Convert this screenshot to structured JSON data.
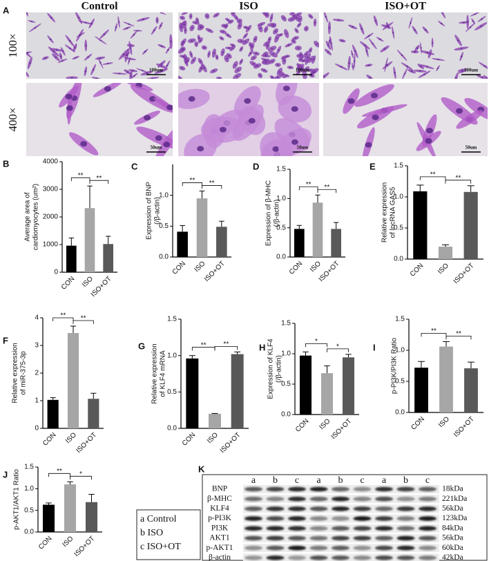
{
  "micrographs": {
    "panel": "A",
    "columns": [
      "Control",
      "ISO",
      "ISO+OT"
    ],
    "rows": [
      {
        "label": "100×",
        "scale_bar": "100um"
      },
      {
        "label": "400×",
        "scale_bar": "50um"
      }
    ]
  },
  "chart_data": [
    {
      "type": "bar",
      "panel": "B",
      "ylabel": [
        "Average area of",
        "cardiomyocytes (um²)"
      ],
      "categories": [
        "CON",
        "ISO",
        "ISO+OT"
      ],
      "values": [
        960,
        2320,
        1020
      ],
      "errors": [
        280,
        800,
        280
      ],
      "colors": [
        "#000000",
        "#a6a6a6",
        "#595959"
      ],
      "ylim": [
        0,
        4000
      ],
      "yticks": [
        0,
        1000,
        2000,
        3000,
        4000
      ],
      "significance": [
        "**",
        "**"
      ]
    },
    {
      "type": "bar",
      "panel": "C",
      "ylabel": [
        "Expression of BNP",
        "(/β-actin)"
      ],
      "categories": [
        "CON",
        "ISO",
        "ISO+OT"
      ],
      "values": [
        0.41,
        0.95,
        0.49
      ],
      "errors": [
        0.1,
        0.12,
        0.09
      ],
      "colors": [
        "#000000",
        "#a6a6a6",
        "#595959"
      ],
      "ylim": [
        0,
        1.5
      ],
      "yticks": [
        {
          "value": 0,
          "label": "0.0"
        },
        0.5,
        {
          "value": 1,
          "label": "1.0"
        }
      ],
      "significance": [
        "**",
        "**"
      ]
    },
    {
      "type": "bar",
      "panel": "D",
      "ylabel": [
        "Expression of β-MHC",
        "(/β-actin)"
      ],
      "categories": [
        "CON",
        "ISO",
        "ISO+OT"
      ],
      "values": [
        0.48,
        0.93,
        0.48
      ],
      "errors": [
        0.06,
        0.13,
        0.11
      ],
      "colors": [
        "#000000",
        "#a6a6a6",
        "#595959"
      ],
      "ylim": [
        0,
        1.5
      ],
      "yticks": [
        {
          "value": 0,
          "label": "0.0"
        },
        0.5,
        {
          "value": 1,
          "label": "1.0"
        },
        1.5
      ],
      "significance": [
        "**",
        "**"
      ]
    },
    {
      "type": "bar",
      "panel": "E",
      "ylabel": [
        "Relative expression",
        "of lncRNA GAS5"
      ],
      "categories": [
        "CON",
        "ISO",
        "ISO+OT"
      ],
      "values": [
        1.09,
        0.2,
        1.08
      ],
      "errors": [
        0.1,
        0.03,
        0.1
      ],
      "colors": [
        "#000000",
        "#a6a6a6",
        "#595959"
      ],
      "ylim": [
        0,
        1.5
      ],
      "yticks": [
        {
          "value": 0,
          "label": "0.0"
        },
        0.5,
        {
          "value": 1,
          "label": "1.0"
        },
        1.5
      ],
      "significance": [
        "**",
        "**"
      ]
    },
    {
      "type": "bar",
      "panel": "F",
      "ylabel": [
        "Relative expression",
        "of miR-375-3p"
      ],
      "categories": [
        "CON",
        "ISO",
        "ISO+OT"
      ],
      "values": [
        1.03,
        3.45,
        1.07
      ],
      "errors": [
        0.08,
        0.25,
        0.2
      ],
      "colors": [
        "#000000",
        "#a6a6a6",
        "#595959"
      ],
      "ylim": [
        0,
        4
      ],
      "yticks": [
        0,
        1,
        2,
        3,
        4
      ],
      "significance": [
        "**",
        "**"
      ]
    },
    {
      "type": "bar",
      "panel": "G",
      "ylabel": [
        "Relative expression",
        "of KLF4 mRNA"
      ],
      "categories": [
        "CON",
        "ISO",
        "ISO+OT"
      ],
      "values": [
        0.96,
        0.2,
        1.02
      ],
      "errors": [
        0.04,
        0.005,
        0.03
      ],
      "colors": [
        "#000000",
        "#a6a6a6",
        "#595959"
      ],
      "ylim": [
        0,
        1.5
      ],
      "yticks": [
        {
          "value": 0,
          "label": "0.0"
        },
        0.5,
        {
          "value": 1,
          "label": "1.0"
        },
        1.5
      ],
      "significance": [
        "**",
        "**"
      ]
    },
    {
      "type": "bar",
      "panel": "H",
      "ylabel": [
        "Expression of KLF4",
        "(/β-actin)"
      ],
      "categories": [
        "CON",
        "ISO",
        "ISO+OT"
      ],
      "values": [
        0.97,
        0.68,
        0.94
      ],
      "errors": [
        0.06,
        0.12,
        0.05
      ],
      "colors": [
        "#000000",
        "#a6a6a6",
        "#595959"
      ],
      "ylim": [
        0,
        1.5
      ],
      "yticks": [
        {
          "value": 0,
          "label": "0.0"
        },
        0.5,
        {
          "value": 1,
          "label": "1.0"
        },
        1.5
      ],
      "significance": [
        "*",
        "*"
      ]
    },
    {
      "type": "bar",
      "panel": "I",
      "ylabel": [
        "p-PI3K/PI3K Ratio"
      ],
      "categories": [
        "CON",
        "ISO",
        "ISO+OT"
      ],
      "values": [
        0.72,
        1.06,
        0.71
      ],
      "errors": [
        0.1,
        0.08,
        0.1
      ],
      "colors": [
        "#000000",
        "#a6a6a6",
        "#595959"
      ],
      "ylim": [
        0,
        1.5
      ],
      "yticks": [
        {
          "value": 0,
          "label": "0.0"
        },
        0.5,
        {
          "value": 1,
          "label": "1.0"
        },
        1.5
      ],
      "significance": [
        "**",
        "**"
      ]
    },
    {
      "type": "bar",
      "panel": "J",
      "ylabel": [
        "p-AKT1/AKT1 Ratio"
      ],
      "categories": [
        "CON",
        "ISO",
        "ISO+OT"
      ],
      "values": [
        0.63,
        1.1,
        0.69
      ],
      "errors": [
        0.04,
        0.06,
        0.18
      ],
      "colors": [
        "#000000",
        "#a6a6a6",
        "#595959"
      ],
      "ylim": [
        0,
        1.5
      ],
      "yticks": [
        {
          "value": 0,
          "label": "0.0"
        },
        0.5,
        {
          "value": 1,
          "label": "1.0"
        },
        1.5
      ],
      "significance": [
        "**",
        "*"
      ]
    }
  ],
  "western_blot": {
    "panel": "K",
    "lanes": [
      "a",
      "b",
      "c",
      "a",
      "b",
      "c",
      "a",
      "b",
      "c"
    ],
    "proteins": [
      {
        "name": "BNP",
        "size": "18kDa"
      },
      {
        "name": "β-MHC",
        "size": "221kDa"
      },
      {
        "name": "KLF4",
        "size": "56kDa"
      },
      {
        "name": "p-PI3K",
        "size": "123kDa"
      },
      {
        "name": "PI3K",
        "size": "84kDa"
      },
      {
        "name": "AKT1",
        "size": "56kDa"
      },
      {
        "name": "p-AKT1",
        "size": "60kDa"
      },
      {
        "name": "β-actin",
        "size": "42kDa"
      }
    ],
    "legend": [
      "a Control",
      "b ISO",
      "c ISO+OT"
    ]
  }
}
